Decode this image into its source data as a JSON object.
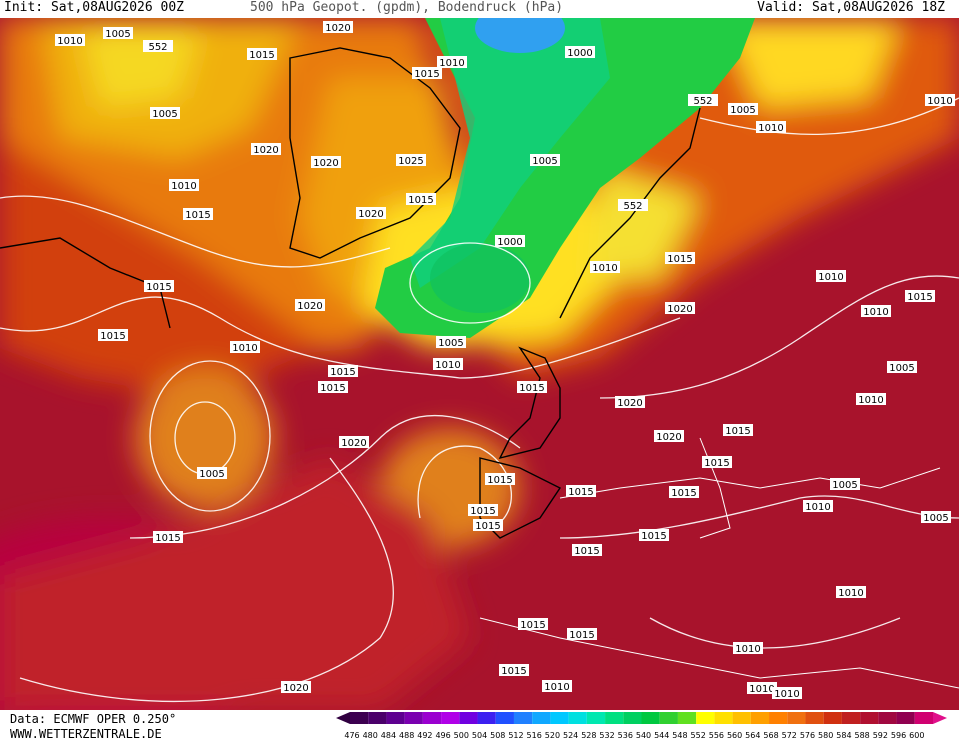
{
  "header": {
    "init": "Init: Sat,08AUG2026 00Z",
    "title": "500 hPa Geopot. (gpdm), Bodendruck (hPa)",
    "valid": "Valid: Sat,08AUG2026 18Z"
  },
  "footer": {
    "data": "Data: ECMWF OPER 0.250°",
    "url": "WWW.WETTERZENTRALE.DE"
  },
  "colorbar": {
    "labels": [
      476,
      480,
      484,
      488,
      492,
      496,
      500,
      504,
      508,
      512,
      516,
      520,
      524,
      528,
      532,
      536,
      540,
      544,
      548,
      552,
      556,
      560,
      564,
      568,
      572,
      576,
      580,
      584,
      588,
      592,
      596,
      600
    ]
  },
  "isobar_labels": [
    "1010",
    "1005",
    "552",
    "1020",
    "1015",
    "1010",
    "1015",
    "1000",
    "1005",
    "552",
    "1005",
    "1010",
    "1010",
    "1020",
    "1020",
    "1025",
    "1005",
    "1010",
    "1015",
    "1015",
    "1020",
    "552",
    "1000",
    "1010",
    "1015",
    "1010",
    "1015",
    "1020",
    "1020",
    "1015",
    "1010",
    "1015",
    "1010",
    "1005",
    "1015",
    "1010",
    "1015",
    "1015",
    "1005",
    "1010",
    "1020",
    "1015",
    "1020",
    "1020",
    "1015",
    "1005",
    "1015",
    "1015",
    "1015",
    "1005",
    "1015",
    "1015",
    "1010",
    "1005",
    "1015",
    "1015",
    "1015",
    "1010",
    "1015",
    "1015",
    "1010",
    "1015",
    "1010",
    "1020",
    "1010",
    "1010"
  ]
}
